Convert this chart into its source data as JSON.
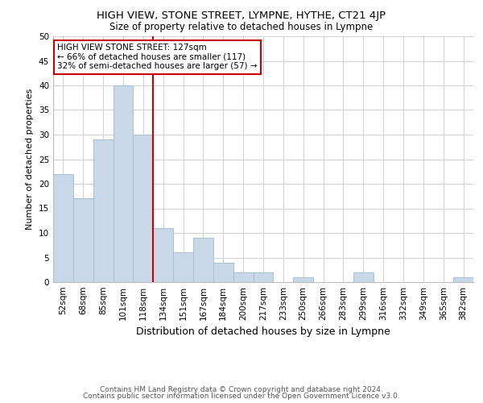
{
  "title": "HIGH VIEW, STONE STREET, LYMPNE, HYTHE, CT21 4JP",
  "subtitle": "Size of property relative to detached houses in Lympne",
  "xlabel": "Distribution of detached houses by size in Lympne",
  "ylabel": "Number of detached properties",
  "footer_line1": "Contains HM Land Registry data © Crown copyright and database right 2024.",
  "footer_line2": "Contains public sector information licensed under the Open Government Licence v3.0.",
  "bin_labels": [
    "52sqm",
    "68sqm",
    "85sqm",
    "101sqm",
    "118sqm",
    "134sqm",
    "151sqm",
    "167sqm",
    "184sqm",
    "200sqm",
    "217sqm",
    "233sqm",
    "250sqm",
    "266sqm",
    "283sqm",
    "299sqm",
    "316sqm",
    "332sqm",
    "349sqm",
    "365sqm",
    "382sqm"
  ],
  "bar_heights": [
    22,
    17,
    29,
    40,
    30,
    11,
    6,
    9,
    4,
    2,
    2,
    0,
    1,
    0,
    0,
    2,
    0,
    0,
    0,
    0,
    1
  ],
  "bar_color": "#c8d8e8",
  "bar_edge_color": "#a8bfcf",
  "grid_color": "#d0d0d0",
  "property_line_color": "#cc0000",
  "annotation_title": "HIGH VIEW STONE STREET: 127sqm",
  "annotation_line1": "← 66% of detached houses are smaller (117)",
  "annotation_line2": "32% of semi-detached houses are larger (57) →",
  "annotation_box_color": "#ffffff",
  "annotation_box_edge": "#cc0000",
  "ylim": [
    0,
    50
  ],
  "yticks": [
    0,
    5,
    10,
    15,
    20,
    25,
    30,
    35,
    40,
    45,
    50
  ],
  "title_fontsize": 9.5,
  "subtitle_fontsize": 8.5,
  "ylabel_fontsize": 8,
  "xlabel_fontsize": 9,
  "tick_fontsize": 7.5,
  "footer_fontsize": 6.5
}
